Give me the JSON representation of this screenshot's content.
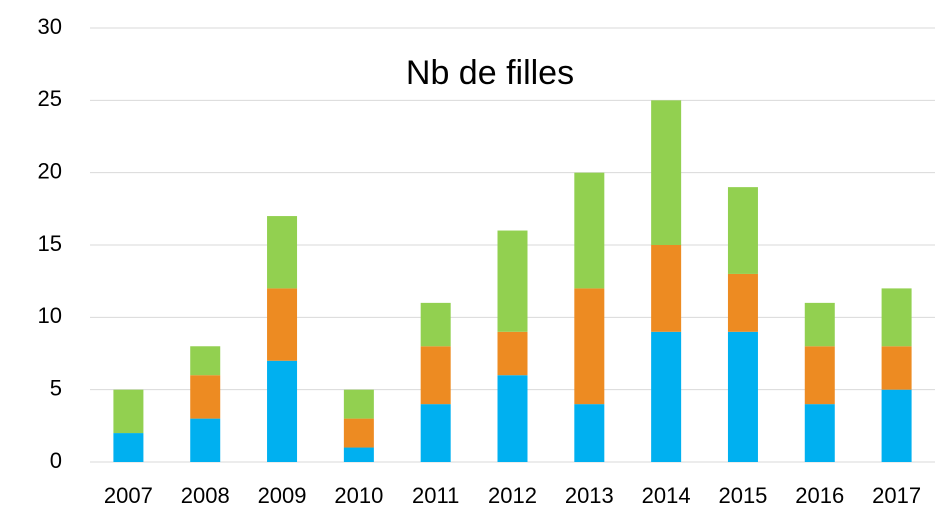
{
  "chart_data": {
    "type": "bar",
    "stacked": true,
    "title": "Nb de filles",
    "categories": [
      "2007",
      "2008",
      "2009",
      "2010",
      "2011",
      "2012",
      "2013",
      "2014",
      "2015",
      "2016",
      "2017"
    ],
    "series": [
      {
        "color": "#00b0f0",
        "values": [
          2,
          3,
          7,
          1,
          4,
          6,
          4,
          9,
          9,
          4,
          5
        ]
      },
      {
        "color": "#ed8b22",
        "values": [
          0,
          3,
          5,
          2,
          4,
          3,
          8,
          6,
          4,
          4,
          3
        ]
      },
      {
        "color": "#92d050",
        "values": [
          3,
          2,
          5,
          2,
          3,
          7,
          8,
          10,
          6,
          3,
          4
        ]
      }
    ],
    "ylim": [
      0,
      30
    ],
    "yticks": [
      0,
      5,
      10,
      15,
      20,
      25,
      30
    ],
    "grid": true
  }
}
